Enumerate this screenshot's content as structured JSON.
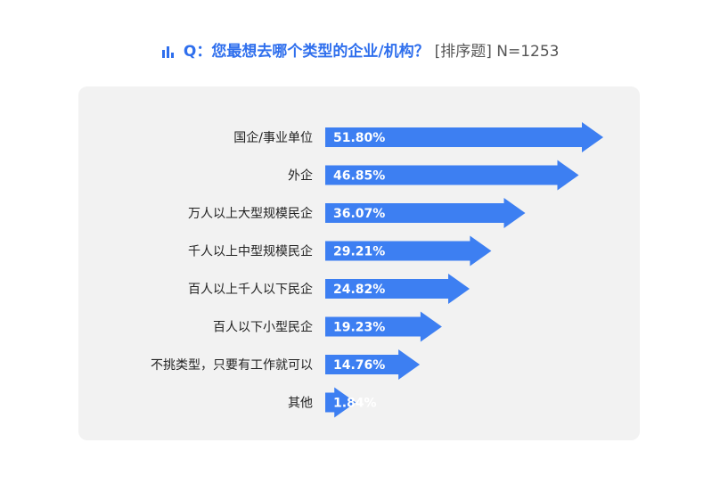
{
  "header": {
    "question": "Q：您最想去哪个类型的企业/机构？",
    "meta": "[排序题] N=1253",
    "icon": "bar-chart-icon"
  },
  "colors": {
    "accent": "#2f6fed",
    "bar": "#3d7ff2",
    "panel": "#f2f2f2"
  },
  "chart_data": {
    "type": "bar",
    "orientation": "horizontal",
    "categories": [
      "国企/事业单位",
      "外企",
      "万人以上大型规模民企",
      "千人以上中型规模民企",
      "百人以上千人以下民企",
      "百人以下小型民企",
      "不挑类型，只要有工作就可以",
      "其他"
    ],
    "values": [
      51.8,
      46.85,
      36.07,
      29.21,
      24.82,
      19.23,
      14.76,
      1.84
    ],
    "value_labels": [
      "51.80%",
      "46.85%",
      "36.07%",
      "29.21%",
      "24.82%",
      "19.23%",
      "14.76%",
      "1.84%"
    ],
    "unit": "%",
    "grid": false,
    "legend": "none"
  }
}
